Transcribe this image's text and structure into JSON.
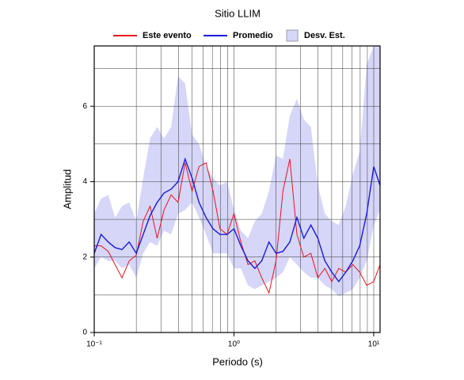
{
  "chart_data": {
    "type": "line",
    "title": "Sitio LLIM",
    "x_label": "Periodo (s)",
    "y_label": "Amplitud",
    "xscale": "log",
    "xlim": [
      0.1,
      11.1
    ],
    "ylim": [
      0,
      7.6
    ],
    "xticks": [
      {
        "value": 0.1,
        "label": "10⁻¹"
      },
      {
        "value": 1,
        "label": "10⁰"
      },
      {
        "value": 10,
        "label": "10¹"
      }
    ],
    "yticks": [
      0,
      2,
      4,
      6
    ],
    "x_minor_grid": [
      0.2,
      0.3,
      0.4,
      0.5,
      0.6,
      0.7,
      0.8,
      0.9,
      2,
      3,
      4,
      5,
      6,
      7,
      8,
      9
    ],
    "y_minor_grid": [
      1,
      3,
      5,
      7
    ],
    "grid": true,
    "legend": "top",
    "x": [
      0.1,
      0.112,
      0.126,
      0.141,
      0.158,
      0.178,
      0.2,
      0.224,
      0.251,
      0.282,
      0.316,
      0.355,
      0.398,
      0.447,
      0.501,
      0.562,
      0.631,
      0.708,
      0.794,
      0.891,
      1,
      1.12,
      1.26,
      1.41,
      1.58,
      1.78,
      2,
      2.24,
      2.51,
      2.82,
      3.16,
      3.55,
      3.98,
      4.47,
      5.01,
      5.62,
      6.31,
      7.08,
      7.94,
      8.91,
      10,
      11.1
    ],
    "series": [
      {
        "name": "Este evento",
        "color": "#e8141c",
        "values": [
          2.3,
          2.3,
          2.15,
          1.8,
          1.45,
          1.9,
          2.05,
          2.95,
          3.35,
          2.5,
          3.25,
          3.65,
          3.45,
          4.5,
          3.75,
          4.4,
          4.5,
          3.75,
          2.75,
          2.6,
          3.15,
          2.4,
          1.8,
          1.9,
          1.45,
          1.05,
          1.9,
          3.75,
          4.6,
          2.6,
          2.0,
          2.1,
          1.45,
          1.7,
          1.35,
          1.7,
          1.6,
          1.8,
          1.6,
          1.25,
          1.35,
          1.8
        ]
      },
      {
        "name": "Promedio",
        "color": "#1a1adc",
        "values": [
          2.1,
          2.6,
          2.4,
          2.25,
          2.2,
          2.4,
          2.1,
          2.6,
          3.1,
          3.45,
          3.7,
          3.8,
          4.0,
          4.6,
          4.1,
          3.45,
          3.05,
          2.75,
          2.6,
          2.6,
          2.75,
          2.3,
          1.9,
          1.7,
          1.9,
          2.4,
          2.1,
          2.15,
          2.4,
          3.05,
          2.5,
          2.85,
          2.5,
          1.9,
          1.6,
          1.35,
          1.6,
          1.9,
          2.3,
          3.15,
          4.4,
          3.9
        ]
      }
    ],
    "band": {
      "name": "Desv. Est.",
      "color": "#d6d6f8",
      "lower": [
        1.7,
        2.0,
        1.9,
        1.9,
        1.7,
        1.8,
        1.45,
        2.1,
        2.4,
        2.3,
        2.7,
        2.6,
        3.15,
        3.25,
        3.45,
        3.05,
        2.6,
        2.1,
        2.1,
        2.1,
        1.7,
        1.7,
        1.25,
        1.15,
        1.25,
        1.35,
        1.45,
        1.6,
        2.0,
        1.8,
        1.6,
        1.45,
        1.45,
        1.25,
        1.15,
        0.95,
        1.05,
        1.15,
        1.45,
        1.9,
        2.85,
        3.25
      ],
      "upper": [
        3.15,
        3.55,
        3.65,
        3.05,
        3.35,
        3.45,
        2.95,
        4.1,
        5.15,
        5.45,
        5.15,
        5.45,
        6.8,
        6.6,
        5.25,
        5.0,
        4.4,
        4.1,
        3.9,
        4.0,
        3.25,
        2.7,
        2.5,
        2.95,
        3.15,
        3.75,
        4.7,
        4.6,
        5.75,
        6.2,
        5.65,
        5.45,
        3.9,
        3.15,
        2.95,
        2.85,
        3.35,
        4.2,
        4.8,
        7.1,
        7.6,
        7.6
      ]
    }
  }
}
